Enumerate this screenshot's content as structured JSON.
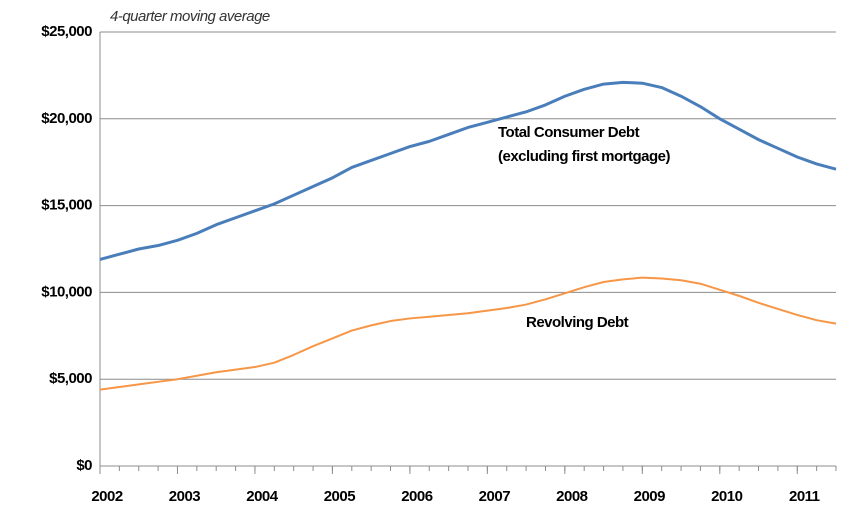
{
  "chart_data": {
    "type": "line",
    "annotations": [
      "4-quarter moving average",
      "(excluding first mortgage)"
    ],
    "x": [
      2002,
      2002.25,
      2002.5,
      2002.75,
      2003,
      2003.25,
      2003.5,
      2003.75,
      2004,
      2004.25,
      2004.5,
      2004.75,
      2005,
      2005.25,
      2005.5,
      2005.75,
      2006,
      2006.25,
      2006.5,
      2006.75,
      2007,
      2007.25,
      2007.5,
      2007.75,
      2008,
      2008.25,
      2008.5,
      2008.75,
      2009,
      2009.25,
      2009.5,
      2009.75,
      2010,
      2010.25,
      2010.5,
      2010.75,
      2011,
      2011.25,
      2011.5
    ],
    "series": [
      {
        "name": "Total Consumer Debt",
        "color": "#4a7ebb",
        "values": [
          11900,
          12200,
          12500,
          12700,
          13000,
          13400,
          13900,
          14300,
          14700,
          15100,
          15600,
          16100,
          16600,
          17200,
          17600,
          18000,
          18400,
          18700,
          19100,
          19500,
          19800,
          20100,
          20400,
          20800,
          21300,
          21700,
          22000,
          22100,
          22050,
          21800,
          21300,
          20700,
          20000,
          19400,
          18800,
          18300,
          17800,
          17400,
          17100
        ]
      },
      {
        "name": "Revolving Debt",
        "color": "#f79646",
        "values": [
          4400,
          4550,
          4700,
          4850,
          5000,
          5200,
          5400,
          5550,
          5700,
          5950,
          6400,
          6900,
          7350,
          7800,
          8100,
          8350,
          8500,
          8600,
          8700,
          8800,
          8950,
          9100,
          9300,
          9600,
          9950,
          10300,
          10600,
          10750,
          10850,
          10800,
          10700,
          10500,
          10150,
          9800,
          9400,
          9050,
          8700,
          8400,
          8200
        ]
      }
    ],
    "xlim": [
      2002,
      2011.5
    ],
    "xticks": [
      2002,
      2003,
      2004,
      2005,
      2006,
      2007,
      2008,
      2009,
      2010,
      2011
    ],
    "ylim": [
      0,
      25000
    ],
    "yticks": [
      {
        "value": 0,
        "label": "$0"
      },
      {
        "value": 5000,
        "label": "$5,000"
      },
      {
        "value": 10000,
        "label": "$10,000"
      },
      {
        "value": 15000,
        "label": "$15,000"
      },
      {
        "value": 20000,
        "label": "$20,000"
      },
      {
        "value": 25000,
        "label": "$25,000"
      }
    ],
    "grid": true
  }
}
